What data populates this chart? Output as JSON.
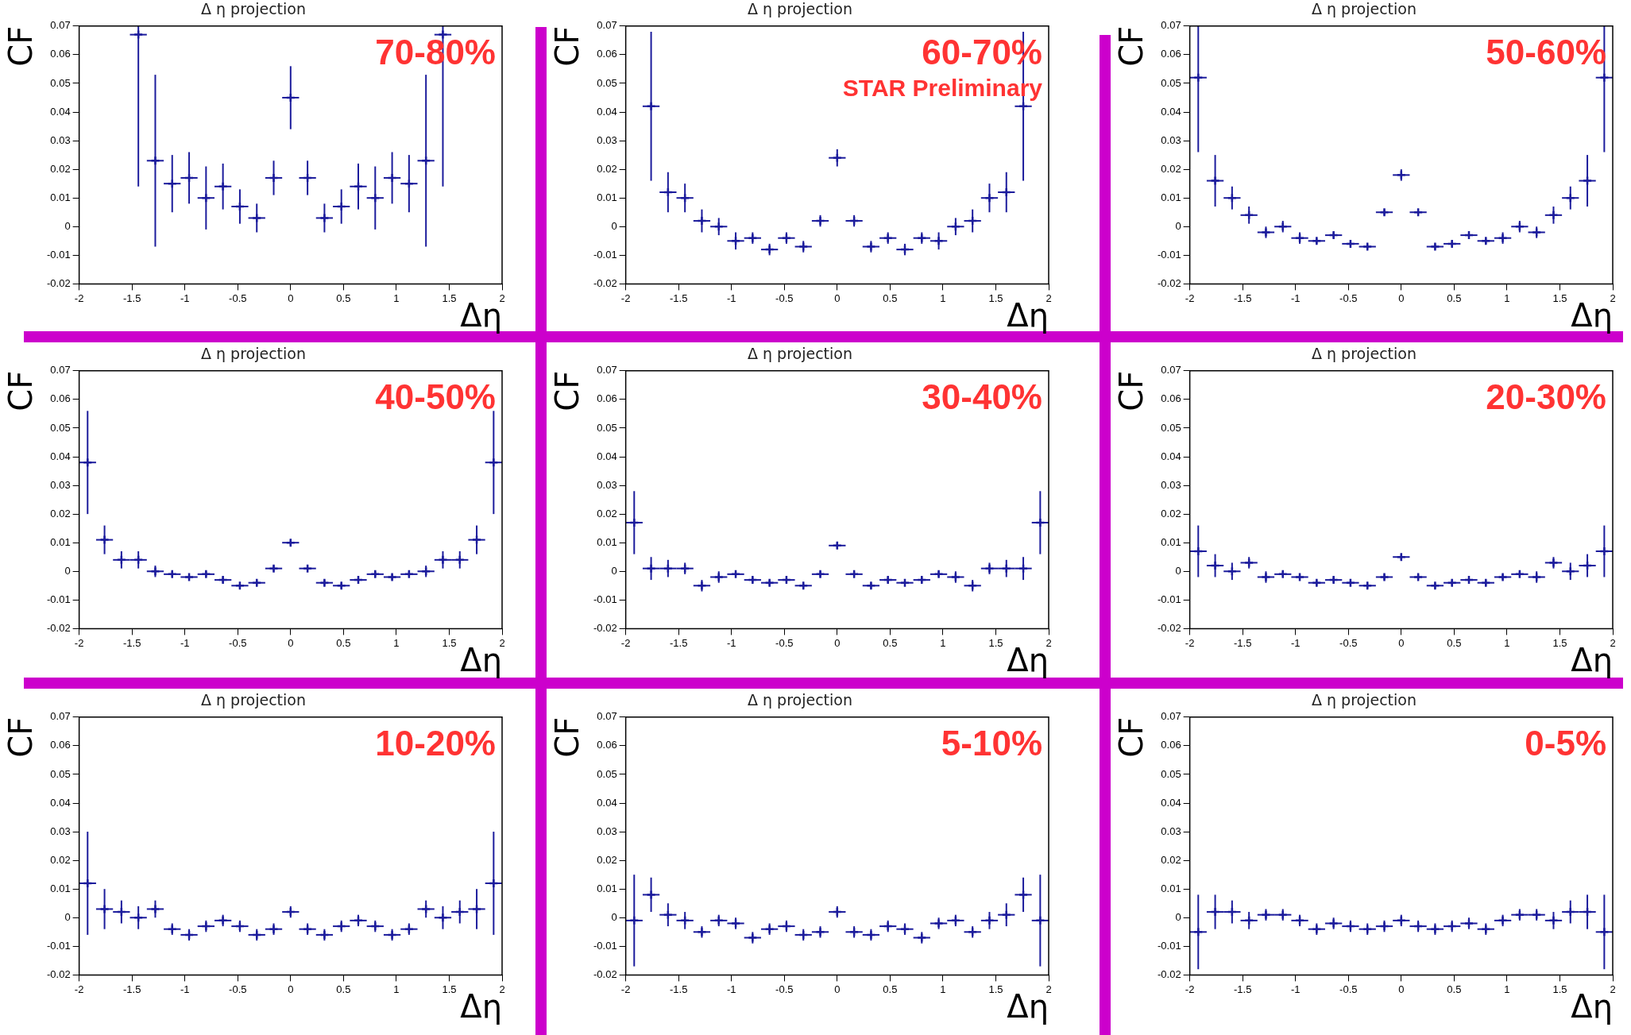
{
  "chart_data": [
    {
      "type": "scatter",
      "title": "Δ η projection",
      "xlabel": "Δη",
      "ylabel": "CF",
      "annotations": [
        "70-80%"
      ],
      "color": "#1c1c9c",
      "marker": "cross",
      "grid": false,
      "xlim": [
        -2,
        2
      ],
      "ylim": [
        -0.02,
        0.07
      ],
      "xticks": [
        -2,
        -1.5,
        -1,
        -0.5,
        0,
        0.5,
        1,
        1.5,
        2
      ],
      "yticks": [
        -0.02,
        -0.01,
        0,
        0.01,
        0.02,
        0.03,
        0.04,
        0.05,
        0.06,
        0.07
      ],
      "x": [
        -1.44,
        -1.28,
        -1.12,
        -0.96,
        -0.8,
        -0.64,
        -0.48,
        -0.32,
        -0.16,
        0,
        0.16,
        0.32,
        0.48,
        0.64,
        0.8,
        0.96,
        1.12,
        1.28,
        1.44
      ],
      "values": [
        0.067,
        0.023,
        0.015,
        0.017,
        0.01,
        0.014,
        0.007,
        0.003,
        0.017,
        0.045,
        0.017,
        0.003,
        0.007,
        0.014,
        0.01,
        0.017,
        0.015,
        0.023,
        0.067
      ],
      "errors": [
        [
          0.014,
          0.07
        ],
        0.03,
        0.01,
        0.009,
        0.011,
        0.008,
        0.006,
        0.005,
        0.006,
        0.011,
        0.006,
        0.005,
        0.006,
        0.008,
        0.011,
        0.009,
        0.01,
        0.03,
        [
          0.014,
          0.07
        ]
      ],
      "xerrors": [
        0.08,
        0.08,
        0.08,
        0.08,
        0.08,
        0.08,
        0.08,
        0.08,
        0.08,
        0.08,
        0.08,
        0.08,
        0.08,
        0.08,
        0.08,
        0.08,
        0.08,
        0.08,
        0.08
      ]
    },
    {
      "type": "scatter",
      "title": "Δ η projection",
      "xlabel": "Δη",
      "ylabel": "CF",
      "annotations": [
        "60-70%",
        "STAR Preliminary"
      ],
      "color": "#1c1c9c",
      "marker": "cross",
      "grid": false,
      "xlim": [
        -2,
        2
      ],
      "ylim": [
        -0.02,
        0.07
      ],
      "xticks": [
        -2,
        -1.5,
        -1,
        -0.5,
        0,
        0.5,
        1,
        1.5,
        2
      ],
      "yticks": [
        -0.02,
        -0.01,
        0,
        0.01,
        0.02,
        0.03,
        0.04,
        0.05,
        0.06,
        0.07
      ],
      "x": [
        -1.76,
        -1.6,
        -1.44,
        -1.28,
        -1.12,
        -0.96,
        -0.8,
        -0.64,
        -0.48,
        -0.32,
        -0.16,
        0,
        0.16,
        0.32,
        0.48,
        0.64,
        0.8,
        0.96,
        1.12,
        1.28,
        1.44,
        1.6,
        1.76
      ],
      "values": [
        0.042,
        0.012,
        0.01,
        0.002,
        0.0,
        -0.005,
        -0.004,
        -0.008,
        -0.004,
        -0.007,
        0.002,
        0.024,
        0.002,
        -0.007,
        -0.004,
        -0.008,
        -0.004,
        -0.005,
        0.0,
        0.002,
        0.01,
        0.012,
        0.042
      ],
      "errors": [
        0.026,
        0.007,
        0.005,
        0.004,
        0.003,
        0.003,
        0.002,
        0.002,
        0.002,
        0.002,
        0.002,
        0.003,
        0.002,
        0.002,
        0.002,
        0.002,
        0.002,
        0.003,
        0.003,
        0.004,
        0.005,
        0.007,
        0.026
      ],
      "xerrors": [
        0.08,
        0.08,
        0.08,
        0.08,
        0.08,
        0.08,
        0.08,
        0.08,
        0.08,
        0.08,
        0.08,
        0.08,
        0.08,
        0.08,
        0.08,
        0.08,
        0.08,
        0.08,
        0.08,
        0.08,
        0.08,
        0.08,
        0.08
      ]
    },
    {
      "type": "scatter",
      "title": "Δ η projection",
      "xlabel": "Δη",
      "ylabel": "CF",
      "annotations": [
        "50-60%"
      ],
      "color": "#1c1c9c",
      "marker": "cross",
      "grid": false,
      "xlim": [
        -2,
        2
      ],
      "ylim": [
        -0.02,
        0.07
      ],
      "xticks": [
        -2,
        -1.5,
        -1,
        -0.5,
        0,
        0.5,
        1,
        1.5,
        2
      ],
      "yticks": [
        -0.02,
        -0.01,
        0,
        0.01,
        0.02,
        0.03,
        0.04,
        0.05,
        0.06,
        0.07
      ],
      "x": [
        -1.92,
        -1.76,
        -1.6,
        -1.44,
        -1.28,
        -1.12,
        -0.96,
        -0.8,
        -0.64,
        -0.48,
        -0.32,
        -0.16,
        0,
        0.16,
        0.32,
        0.48,
        0.64,
        0.8,
        0.96,
        1.12,
        1.28,
        1.44,
        1.6,
        1.76,
        1.92
      ],
      "values": [
        0.052,
        0.016,
        0.01,
        0.004,
        -0.002,
        0.0,
        -0.004,
        -0.005,
        -0.003,
        -0.006,
        -0.007,
        0.005,
        0.018,
        0.005,
        -0.007,
        -0.006,
        -0.003,
        -0.005,
        -0.004,
        0.0,
        -0.002,
        0.004,
        0.01,
        0.016,
        0.052
      ],
      "errors": [
        [
          0.026,
          0.07
        ],
        0.009,
        0.004,
        0.003,
        0.002,
        0.002,
        0.002,
        0.001,
        0.001,
        0.001,
        0.001,
        0.001,
        0.002,
        0.001,
        0.001,
        0.001,
        0.001,
        0.001,
        0.002,
        0.002,
        0.002,
        0.003,
        0.004,
        0.009,
        [
          0.026,
          0.07
        ]
      ],
      "xerrors": [
        0.08,
        0.08,
        0.08,
        0.08,
        0.08,
        0.08,
        0.08,
        0.08,
        0.08,
        0.08,
        0.08,
        0.08,
        0.08,
        0.08,
        0.08,
        0.08,
        0.08,
        0.08,
        0.08,
        0.08,
        0.08,
        0.08,
        0.08,
        0.08,
        0.08
      ]
    },
    {
      "type": "scatter",
      "title": "Δ η projection",
      "xlabel": "Δη",
      "ylabel": "CF",
      "annotations": [
        "40-50%"
      ],
      "color": "#1c1c9c",
      "marker": "cross",
      "grid": false,
      "xlim": [
        -2,
        2
      ],
      "ylim": [
        -0.02,
        0.07
      ],
      "xticks": [
        -2,
        -1.5,
        -1,
        -0.5,
        0,
        0.5,
        1,
        1.5,
        2
      ],
      "yticks": [
        -0.02,
        -0.01,
        0,
        0.01,
        0.02,
        0.03,
        0.04,
        0.05,
        0.06,
        0.07
      ],
      "x": [
        -1.92,
        -1.76,
        -1.6,
        -1.44,
        -1.28,
        -1.12,
        -0.96,
        -0.8,
        -0.64,
        -0.48,
        -0.32,
        -0.16,
        0,
        0.16,
        0.32,
        0.48,
        0.64,
        0.8,
        0.96,
        1.12,
        1.28,
        1.44,
        1.6,
        1.76,
        1.92
      ],
      "values": [
        0.038,
        0.011,
        0.004,
        0.004,
        0.0,
        -0.001,
        -0.002,
        -0.001,
        -0.003,
        -0.005,
        -0.004,
        0.001,
        0.01,
        0.001,
        -0.004,
        -0.005,
        -0.003,
        -0.001,
        -0.002,
        -0.001,
        0.0,
        0.004,
        0.004,
        0.011,
        0.038
      ],
      "errors": [
        0.018,
        0.005,
        0.003,
        0.003,
        0.002,
        0.001,
        0.001,
        0.001,
        0.001,
        0.001,
        0.001,
        0.001,
        0.001,
        0.001,
        0.001,
        0.001,
        0.001,
        0.001,
        0.001,
        0.001,
        0.002,
        0.003,
        0.003,
        0.005,
        0.018
      ],
      "xerrors": [
        0.08,
        0.08,
        0.08,
        0.08,
        0.08,
        0.08,
        0.08,
        0.08,
        0.08,
        0.08,
        0.08,
        0.08,
        0.08,
        0.08,
        0.08,
        0.08,
        0.08,
        0.08,
        0.08,
        0.08,
        0.08,
        0.08,
        0.08,
        0.08,
        0.08
      ]
    },
    {
      "type": "scatter",
      "title": "Δ η projection",
      "xlabel": "Δη",
      "ylabel": "CF",
      "annotations": [
        "30-40%"
      ],
      "color": "#1c1c9c",
      "marker": "cross",
      "grid": false,
      "xlim": [
        -2,
        2
      ],
      "ylim": [
        -0.02,
        0.07
      ],
      "xticks": [
        -2,
        -1.5,
        -1,
        -0.5,
        0,
        0.5,
        1,
        1.5,
        2
      ],
      "yticks": [
        -0.02,
        -0.01,
        0,
        0.01,
        0.02,
        0.03,
        0.04,
        0.05,
        0.06,
        0.07
      ],
      "x": [
        -1.92,
        -1.76,
        -1.6,
        -1.44,
        -1.28,
        -1.12,
        -0.96,
        -0.8,
        -0.64,
        -0.48,
        -0.32,
        -0.16,
        0,
        0.16,
        0.32,
        0.48,
        0.64,
        0.8,
        0.96,
        1.12,
        1.28,
        1.44,
        1.6,
        1.76,
        1.92
      ],
      "values": [
        0.017,
        0.001,
        0.001,
        0.001,
        -0.005,
        -0.002,
        -0.001,
        -0.003,
        -0.004,
        -0.003,
        -0.005,
        -0.001,
        0.009,
        -0.001,
        -0.005,
        -0.003,
        -0.004,
        -0.003,
        -0.001,
        -0.002,
        -0.005,
        0.001,
        0.001,
        0.001,
        0.017
      ],
      "errors": [
        0.011,
        0.004,
        0.003,
        0.002,
        0.002,
        0.002,
        0.001,
        0.001,
        0.001,
        0.001,
        0.001,
        0.001,
        0.001,
        0.001,
        0.001,
        0.001,
        0.001,
        0.001,
        0.001,
        0.002,
        0.002,
        0.002,
        0.003,
        0.004,
        0.011
      ],
      "xerrors": [
        0.08,
        0.08,
        0.08,
        0.08,
        0.08,
        0.08,
        0.08,
        0.08,
        0.08,
        0.08,
        0.08,
        0.08,
        0.08,
        0.08,
        0.08,
        0.08,
        0.08,
        0.08,
        0.08,
        0.08,
        0.08,
        0.08,
        0.08,
        0.08,
        0.08
      ]
    },
    {
      "type": "scatter",
      "title": "Δ η projection",
      "xlabel": "Δη",
      "ylabel": "CF",
      "annotations": [
        "20-30%"
      ],
      "color": "#1c1c9c",
      "marker": "cross",
      "grid": false,
      "xlim": [
        -2,
        2
      ],
      "ylim": [
        -0.02,
        0.07
      ],
      "xticks": [
        -2,
        -1.5,
        -1,
        -0.5,
        0,
        0.5,
        1,
        1.5,
        2
      ],
      "yticks": [
        -0.02,
        -0.01,
        0,
        0.01,
        0.02,
        0.03,
        0.04,
        0.05,
        0.06,
        0.07
      ],
      "x": [
        -1.92,
        -1.76,
        -1.6,
        -1.44,
        -1.28,
        -1.12,
        -0.96,
        -0.8,
        -0.64,
        -0.48,
        -0.32,
        -0.16,
        0,
        0.16,
        0.32,
        0.48,
        0.64,
        0.8,
        0.96,
        1.12,
        1.28,
        1.44,
        1.6,
        1.76,
        1.92
      ],
      "values": [
        0.007,
        0.002,
        0.0,
        0.003,
        -0.002,
        -0.001,
        -0.002,
        -0.004,
        -0.003,
        -0.004,
        -0.005,
        -0.002,
        0.005,
        -0.002,
        -0.005,
        -0.004,
        -0.003,
        -0.004,
        -0.002,
        -0.001,
        -0.002,
        0.003,
        0.0,
        0.002,
        0.007
      ],
      "errors": [
        0.009,
        0.004,
        0.003,
        0.002,
        0.002,
        0.001,
        0.001,
        0.001,
        0.001,
        0.001,
        0.001,
        0.001,
        0.001,
        0.001,
        0.001,
        0.001,
        0.001,
        0.001,
        0.001,
        0.001,
        0.002,
        0.002,
        0.003,
        0.004,
        0.009
      ],
      "xerrors": [
        0.08,
        0.08,
        0.08,
        0.08,
        0.08,
        0.08,
        0.08,
        0.08,
        0.08,
        0.08,
        0.08,
        0.08,
        0.08,
        0.08,
        0.08,
        0.08,
        0.08,
        0.08,
        0.08,
        0.08,
        0.08,
        0.08,
        0.08,
        0.08,
        0.08
      ]
    },
    {
      "type": "scatter",
      "title": "Δ η projection",
      "xlabel": "Δη",
      "ylabel": "CF",
      "annotations": [
        "10-20%"
      ],
      "color": "#1c1c9c",
      "marker": "cross",
      "grid": false,
      "xlim": [
        -2,
        2
      ],
      "ylim": [
        -0.02,
        0.07
      ],
      "xticks": [
        -2,
        -1.5,
        -1,
        -0.5,
        0,
        0.5,
        1,
        1.5,
        2
      ],
      "yticks": [
        -0.02,
        -0.01,
        0,
        0.01,
        0.02,
        0.03,
        0.04,
        0.05,
        0.06,
        0.07
      ],
      "x": [
        -1.92,
        -1.76,
        -1.6,
        -1.44,
        -1.28,
        -1.12,
        -0.96,
        -0.8,
        -0.64,
        -0.48,
        -0.32,
        -0.16,
        0,
        0.16,
        0.32,
        0.48,
        0.64,
        0.8,
        0.96,
        1.12,
        1.28,
        1.44,
        1.6,
        1.76,
        1.92
      ],
      "values": [
        0.012,
        0.003,
        0.002,
        0.0,
        0.003,
        -0.004,
        -0.006,
        -0.003,
        -0.001,
        -0.003,
        -0.006,
        -0.004,
        0.002,
        -0.004,
        -0.006,
        -0.003,
        -0.001,
        -0.003,
        -0.006,
        -0.004,
        0.003,
        0.0,
        0.002,
        0.003,
        0.012
      ],
      "errors": [
        0.018,
        0.007,
        0.004,
        0.004,
        0.003,
        0.002,
        0.002,
        0.002,
        0.002,
        0.002,
        0.002,
        0.002,
        0.002,
        0.002,
        0.002,
        0.002,
        0.002,
        0.002,
        0.002,
        0.002,
        0.003,
        0.004,
        0.004,
        0.007,
        0.018
      ],
      "xerrors": [
        0.08,
        0.08,
        0.08,
        0.08,
        0.08,
        0.08,
        0.08,
        0.08,
        0.08,
        0.08,
        0.08,
        0.08,
        0.08,
        0.08,
        0.08,
        0.08,
        0.08,
        0.08,
        0.08,
        0.08,
        0.08,
        0.08,
        0.08,
        0.08,
        0.08
      ]
    },
    {
      "type": "scatter",
      "title": "Δ η projection",
      "xlabel": "Δη",
      "ylabel": "CF",
      "annotations": [
        "5-10%"
      ],
      "color": "#1c1c9c",
      "marker": "cross",
      "grid": false,
      "xlim": [
        -2,
        2
      ],
      "ylim": [
        -0.02,
        0.07
      ],
      "xticks": [
        -2,
        -1.5,
        -1,
        -0.5,
        0,
        0.5,
        1,
        1.5,
        2
      ],
      "yticks": [
        -0.02,
        -0.01,
        0,
        0.01,
        0.02,
        0.03,
        0.04,
        0.05,
        0.06,
        0.07
      ],
      "x": [
        -1.92,
        -1.76,
        -1.6,
        -1.44,
        -1.28,
        -1.12,
        -0.96,
        -0.8,
        -0.64,
        -0.48,
        -0.32,
        -0.16,
        0,
        0.16,
        0.32,
        0.48,
        0.64,
        0.8,
        0.96,
        1.12,
        1.28,
        1.44,
        1.6,
        1.76,
        1.92
      ],
      "values": [
        -0.001,
        0.008,
        0.001,
        -0.001,
        -0.005,
        -0.001,
        -0.002,
        -0.007,
        -0.004,
        -0.003,
        -0.006,
        -0.005,
        0.002,
        -0.005,
        -0.006,
        -0.003,
        -0.004,
        -0.007,
        -0.002,
        -0.001,
        -0.005,
        -0.001,
        0.001,
        0.008,
        -0.001
      ],
      "errors": [
        0.016,
        0.006,
        0.004,
        0.003,
        0.002,
        0.002,
        0.002,
        0.002,
        0.002,
        0.002,
        0.002,
        0.002,
        0.002,
        0.002,
        0.002,
        0.002,
        0.002,
        0.002,
        0.002,
        0.002,
        0.002,
        0.003,
        0.004,
        0.006,
        0.016
      ],
      "xerrors": [
        0.08,
        0.08,
        0.08,
        0.08,
        0.08,
        0.08,
        0.08,
        0.08,
        0.08,
        0.08,
        0.08,
        0.08,
        0.08,
        0.08,
        0.08,
        0.08,
        0.08,
        0.08,
        0.08,
        0.08,
        0.08,
        0.08,
        0.08,
        0.08,
        0.08
      ]
    },
    {
      "type": "scatter",
      "title": "Δ η projection",
      "xlabel": "Δη",
      "ylabel": "CF",
      "annotations": [
        "0-5%"
      ],
      "color": "#1c1c9c",
      "marker": "cross",
      "grid": false,
      "xlim": [
        -2,
        2
      ],
      "ylim": [
        -0.02,
        0.07
      ],
      "xticks": [
        -2,
        -1.5,
        -1,
        -0.5,
        0,
        0.5,
        1,
        1.5,
        2
      ],
      "yticks": [
        -0.02,
        -0.01,
        0,
        0.01,
        0.02,
        0.03,
        0.04,
        0.05,
        0.06,
        0.07
      ],
      "x": [
        -1.92,
        -1.76,
        -1.6,
        -1.44,
        -1.28,
        -1.12,
        -0.96,
        -0.8,
        -0.64,
        -0.48,
        -0.32,
        -0.16,
        0,
        0.16,
        0.32,
        0.48,
        0.64,
        0.8,
        0.96,
        1.12,
        1.28,
        1.44,
        1.6,
        1.76,
        1.92
      ],
      "values": [
        -0.005,
        0.002,
        0.002,
        -0.001,
        0.001,
        0.001,
        -0.001,
        -0.004,
        -0.002,
        -0.003,
        -0.004,
        -0.003,
        -0.001,
        -0.003,
        -0.004,
        -0.003,
        -0.002,
        -0.004,
        -0.001,
        0.001,
        0.001,
        -0.001,
        0.002,
        0.002,
        -0.005
      ],
      "errors": [
        0.013,
        0.006,
        0.004,
        0.003,
        0.002,
        0.002,
        0.002,
        0.002,
        0.002,
        0.002,
        0.002,
        0.002,
        0.002,
        0.002,
        0.002,
        0.002,
        0.002,
        0.002,
        0.002,
        0.002,
        0.002,
        0.003,
        0.004,
        0.006,
        0.013
      ],
      "xerrors": [
        0.08,
        0.08,
        0.08,
        0.08,
        0.08,
        0.08,
        0.08,
        0.08,
        0.08,
        0.08,
        0.08,
        0.08,
        0.08,
        0.08,
        0.08,
        0.08,
        0.08,
        0.08,
        0.08,
        0.08,
        0.08,
        0.08,
        0.08,
        0.08,
        0.08
      ]
    }
  ]
}
